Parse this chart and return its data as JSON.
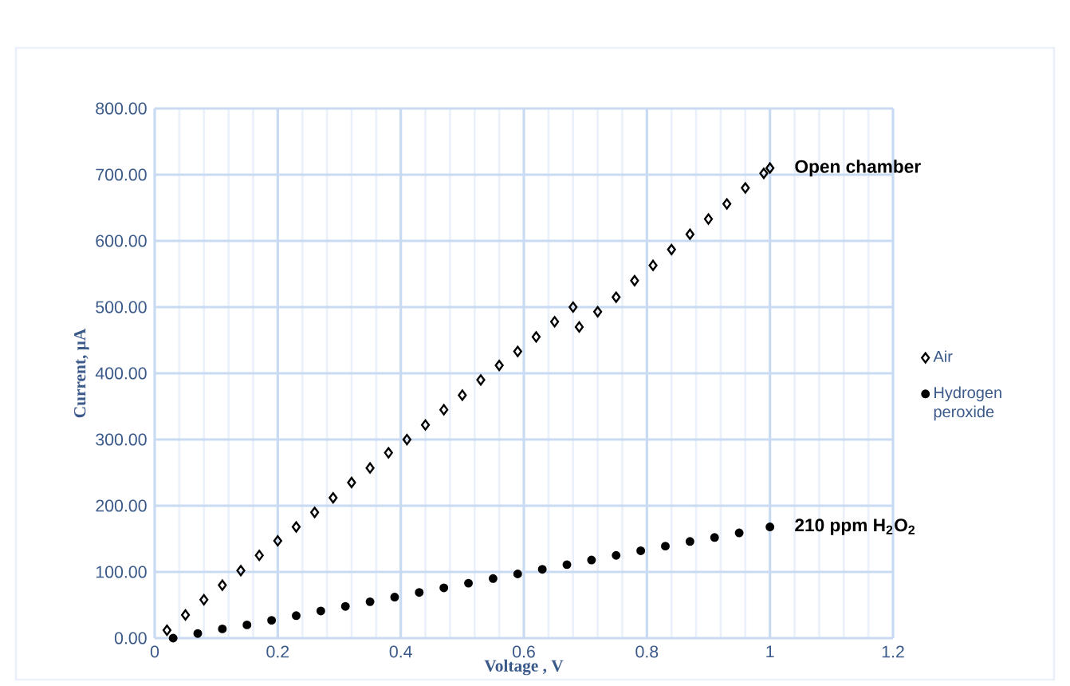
{
  "chart_data": {
    "type": "scatter",
    "xlabel": "Voltage , V",
    "ylabel": "Current, µA",
    "xlim": [
      0,
      1.2
    ],
    "xticks": [
      0,
      0.2,
      0.4,
      0.6,
      0.8,
      1,
      1.2
    ],
    "ylim": [
      0,
      800
    ],
    "yticks": [
      {
        "value": 0,
        "label": "0.00"
      },
      {
        "value": 100,
        "label": "100.00"
      },
      {
        "value": 200,
        "label": "200.00"
      },
      {
        "value": 300,
        "label": "300.00"
      },
      {
        "value": 400,
        "label": "400.00"
      },
      {
        "value": 500,
        "label": "500.00"
      },
      {
        "value": 600,
        "label": "600.00"
      },
      {
        "value": 700,
        "label": "700.00"
      },
      {
        "value": 800,
        "label": "800.00"
      }
    ],
    "grid": true,
    "legend": "right",
    "series": [
      {
        "name": "Air",
        "color": "#000000",
        "marker": "diamond",
        "x": [
          0.02,
          0.05,
          0.08,
          0.11,
          0.14,
          0.17,
          0.2,
          0.23,
          0.26,
          0.29,
          0.32,
          0.35,
          0.38,
          0.41,
          0.44,
          0.47,
          0.5,
          0.53,
          0.56,
          0.59,
          0.62,
          0.65,
          0.68,
          0.69,
          0.72,
          0.75,
          0.78,
          0.81,
          0.84,
          0.87,
          0.9,
          0.93,
          0.96,
          0.99,
          1.0
        ],
        "values": [
          12,
          35,
          58,
          80,
          102,
          125,
          147,
          168,
          190,
          212,
          235,
          257,
          280,
          300,
          322,
          345,
          367,
          390,
          412,
          433,
          455,
          478,
          500,
          470,
          493,
          515,
          540,
          563,
          587,
          610,
          633,
          656,
          680,
          702,
          710
        ]
      },
      {
        "name": "Hydrogen peroxide",
        "color": "#000000",
        "marker": "circle",
        "x": [
          0.03,
          0.07,
          0.11,
          0.15,
          0.19,
          0.23,
          0.27,
          0.31,
          0.35,
          0.39,
          0.43,
          0.47,
          0.51,
          0.55,
          0.59,
          0.63,
          0.67,
          0.71,
          0.75,
          0.79,
          0.83,
          0.87,
          0.91,
          0.95,
          1.0
        ],
        "values": [
          0,
          7,
          14,
          20,
          27,
          34,
          41,
          48,
          55,
          62,
          69,
          76,
          83,
          90,
          97,
          104,
          111,
          118,
          125,
          132,
          139,
          146,
          152,
          159,
          168
        ]
      }
    ],
    "annotations": [
      {
        "text": "Open chamber",
        "x": 1.0,
        "y": 710
      },
      {
        "text": "210 ppm H$_{2}$O$_{2}$",
        "x": 1.0,
        "y": 168
      }
    ]
  }
}
